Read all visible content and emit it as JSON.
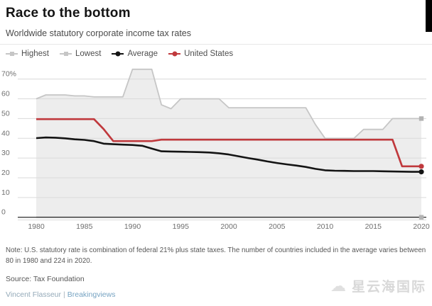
{
  "header": {
    "title": "Race to the bottom",
    "subtitle": "Worldwide statutory corporate income tax rates"
  },
  "legend": [
    {
      "label": "Highest",
      "color": "#c6c6c6",
      "marker": "square"
    },
    {
      "label": "Lowest",
      "color": "#c6c6c6",
      "marker": "square"
    },
    {
      "label": "Average",
      "color": "#141414",
      "marker": "circle"
    },
    {
      "label": "United States",
      "color": "#c0393d",
      "marker": "circle"
    }
  ],
  "chart_data": {
    "type": "line",
    "title": "Race to the bottom",
    "subtitle": "Worldwide statutory corporate income tax rates",
    "x": [
      1980,
      1981,
      1982,
      1983,
      1984,
      1985,
      1986,
      1987,
      1988,
      1989,
      1990,
      1991,
      1992,
      1993,
      1994,
      1995,
      1996,
      1997,
      1998,
      1999,
      2000,
      2001,
      2002,
      2003,
      2004,
      2005,
      2006,
      2007,
      2008,
      2009,
      2010,
      2011,
      2012,
      2013,
      2014,
      2015,
      2016,
      2017,
      2018,
      2019,
      2020
    ],
    "xticks": [
      1980,
      1985,
      1990,
      1995,
      2000,
      2005,
      2010,
      2015,
      2020
    ],
    "yticks": [
      70,
      60,
      50,
      40,
      30,
      20,
      10,
      0
    ],
    "ytick_labels": [
      "70%",
      "60",
      "50",
      "40",
      "30",
      "20",
      "10",
      "0"
    ],
    "ylim": [
      0,
      78
    ],
    "grid": true,
    "legend_position": "top",
    "band_fill": "area shaded between Highest and Lowest series",
    "colors": {
      "band": "#ededed",
      "grid": "#dadada",
      "zero_axis": "#3e3e3e",
      "tick_text": "#6f6f6f"
    },
    "series": [
      {
        "name": "Highest",
        "color": "#c6c6c6",
        "marker": "square",
        "marker_color": "#b3b3b3",
        "width": 1.8,
        "values": [
          60,
          62,
          62,
          62,
          61.5,
          61.5,
          61,
          61,
          61,
          61,
          75,
          75,
          75,
          57,
          55,
          60,
          60,
          60,
          60,
          60,
          55.5,
          55.5,
          55.5,
          55.5,
          55.5,
          55.5,
          55.5,
          55.5,
          55.5,
          47,
          40,
          40,
          40,
          40,
          44.5,
          44.5,
          44.5,
          50,
          50,
          50,
          50
        ]
      },
      {
        "name": "Lowest",
        "color": "#c6c6c6",
        "marker": "square",
        "marker_color": "#b3b3b3",
        "width": 2.2,
        "values": [
          0,
          0,
          0,
          0,
          0,
          0,
          0,
          0,
          0,
          0,
          0,
          0,
          0,
          0,
          0,
          0,
          0,
          0,
          0,
          0,
          0,
          0,
          0,
          0,
          0,
          0,
          0,
          0,
          0,
          0,
          0,
          0,
          0,
          0,
          0,
          0,
          0,
          0,
          0,
          0,
          0
        ]
      },
      {
        "name": "Average",
        "color": "#141414",
        "marker": "circle",
        "marker_color": "#141414",
        "width": 2.6,
        "values": [
          40.1,
          40.4,
          40.3,
          40.0,
          39.5,
          39.2,
          38.6,
          37.3,
          37.0,
          36.8,
          36.6,
          36.2,
          34.8,
          33.4,
          33.3,
          33.2,
          33.1,
          33.0,
          32.8,
          32.4,
          31.8,
          30.9,
          30.0,
          29.2,
          28.3,
          27.5,
          26.8,
          26.2,
          25.5,
          24.5,
          23.8,
          23.6,
          23.5,
          23.4,
          23.4,
          23.4,
          23.3,
          23.2,
          23.1,
          23.0,
          23.0
        ]
      },
      {
        "name": "United States",
        "color": "#c0393d",
        "marker": "circle",
        "marker_color": "#c0393d",
        "width": 2.7,
        "values": [
          49.7,
          49.7,
          49.7,
          49.7,
          49.7,
          49.7,
          49.7,
          44.7,
          38.6,
          38.6,
          38.6,
          38.6,
          38.6,
          39.3,
          39.3,
          39.3,
          39.3,
          39.3,
          39.3,
          39.3,
          39.3,
          39.3,
          39.3,
          39.3,
          39.3,
          39.3,
          39.3,
          39.3,
          39.3,
          39.3,
          39.3,
          39.3,
          39.3,
          39.3,
          39.3,
          39.3,
          39.3,
          39.3,
          25.8,
          25.8,
          25.8
        ]
      }
    ]
  },
  "footer": {
    "note": "Note: U.S. statutory rate is combination of federal 21% plus state taxes. The number of countries included in the average varies between 80 in 1980 and 224 in 2020.",
    "source": "Source: Tax Foundation",
    "credit_author": "Vincent Flasseur",
    "credit_separator": "|",
    "credit_brand": "Breakingviews"
  },
  "watermark": {
    "text": "星云海国际",
    "logo": "cloud-icon"
  }
}
